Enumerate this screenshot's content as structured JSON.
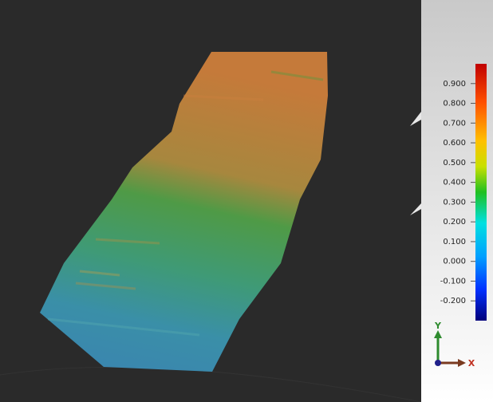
{
  "legend": {
    "ticks": [
      {
        "value": 0.9,
        "label": "0.900"
      },
      {
        "value": 0.8,
        "label": "0.800"
      },
      {
        "value": 0.7,
        "label": "0.700"
      },
      {
        "value": 0.6,
        "label": "0.600"
      },
      {
        "value": 0.5,
        "label": "0.500"
      },
      {
        "value": 0.4,
        "label": "0.400"
      },
      {
        "value": 0.3,
        "label": "0.300"
      },
      {
        "value": 0.2,
        "label": "0.200"
      },
      {
        "value": 0.1,
        "label": "0.100"
      },
      {
        "value": 0,
        "label": "0.000"
      },
      {
        "value": -0.1,
        "label": "-0.100"
      },
      {
        "value": -0.2,
        "label": "-0.200"
      }
    ],
    "range": [
      -0.3,
      1.0
    ]
  },
  "triad": {
    "y_label": "Y",
    "x_label": "X"
  }
}
